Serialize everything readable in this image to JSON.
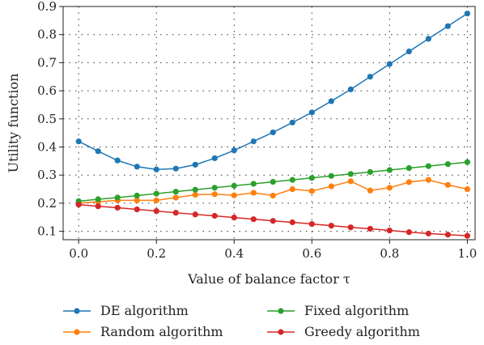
{
  "chart_data": {
    "type": "line",
    "xlabel": "Value of balance factor τ",
    "ylabel": "Utility function",
    "xlim": [
      -0.04,
      1.02
    ],
    "ylim": [
      0.07,
      0.9
    ],
    "x_ticks": [
      "0.0",
      "0.2",
      "0.4",
      "0.6",
      "0.8",
      "1.0"
    ],
    "y_ticks": [
      "0.1",
      "0.2",
      "0.3",
      "0.4",
      "0.5",
      "0.6",
      "0.7",
      "0.8",
      "0.9"
    ],
    "grid": "dotted",
    "legend_position": "bottom",
    "x": [
      0.0,
      0.05,
      0.1,
      0.15,
      0.2,
      0.25,
      0.3,
      0.35,
      0.4,
      0.45,
      0.5,
      0.55,
      0.6,
      0.65,
      0.7,
      0.75,
      0.8,
      0.85,
      0.9,
      0.95,
      1.0
    ],
    "series": [
      {
        "name": "DE algorithm",
        "color": "#1f77b4",
        "values": [
          0.42,
          0.385,
          0.352,
          0.33,
          0.32,
          0.323,
          0.337,
          0.36,
          0.388,
          0.42,
          0.452,
          0.487,
          0.523,
          0.563,
          0.605,
          0.65,
          0.695,
          0.74,
          0.785,
          0.83,
          0.875
        ]
      },
      {
        "name": "Random algorithm",
        "color": "#ff7f0e",
        "values": [
          0.2,
          0.205,
          0.21,
          0.21,
          0.21,
          0.22,
          0.23,
          0.232,
          0.228,
          0.237,
          0.227,
          0.25,
          0.243,
          0.26,
          0.278,
          0.245,
          0.255,
          0.275,
          0.283,
          0.265,
          0.25
        ]
      },
      {
        "name": "Fixed algorithm",
        "color": "#2ca02c",
        "values": [
          0.207,
          0.214,
          0.22,
          0.227,
          0.234,
          0.241,
          0.248,
          0.255,
          0.262,
          0.269,
          0.276,
          0.283,
          0.29,
          0.297,
          0.304,
          0.311,
          0.318,
          0.325,
          0.332,
          0.339,
          0.346
        ]
      },
      {
        "name": "Greedy algorithm",
        "color": "#d62728",
        "values": [
          0.195,
          0.189,
          0.184,
          0.178,
          0.172,
          0.166,
          0.16,
          0.155,
          0.149,
          0.143,
          0.137,
          0.132,
          0.126,
          0.12,
          0.114,
          0.109,
          0.103,
          0.097,
          0.092,
          0.088,
          0.084
        ]
      }
    ]
  }
}
